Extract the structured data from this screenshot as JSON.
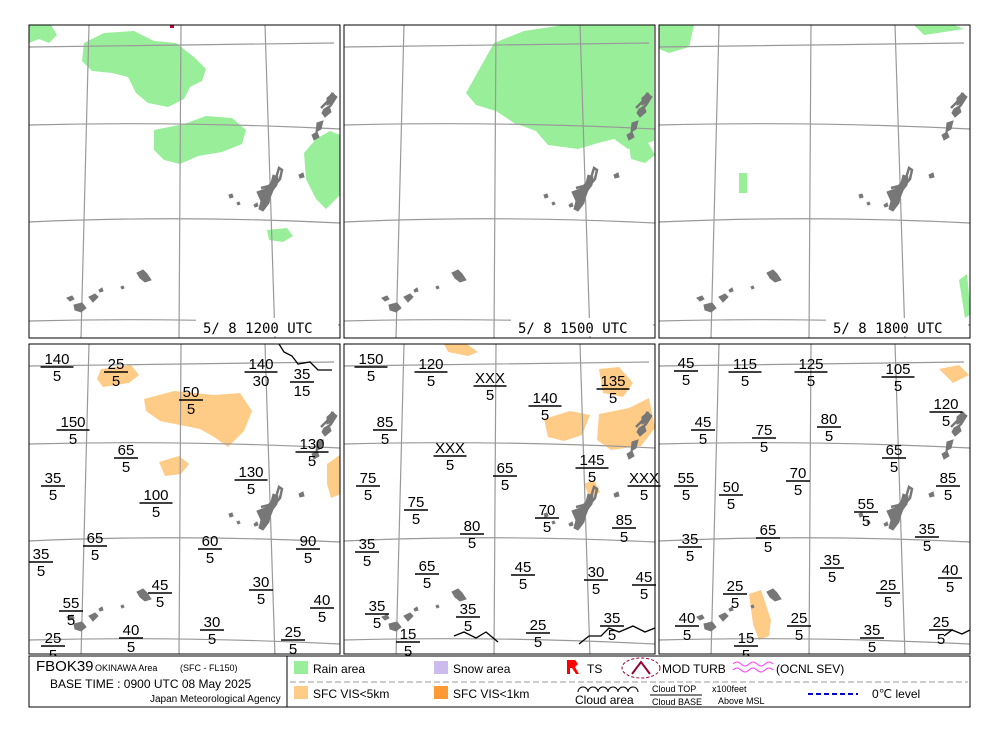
{
  "panels": [
    {
      "time": "5/ 8 1200 UTC"
    },
    {
      "time": "5/ 8 1500 UTC"
    },
    {
      "time": "5/ 8 1800 UTC"
    }
  ],
  "clouds": [
    [
      {
        "top": "140",
        "base": "5"
      },
      {
        "top": "25",
        "base": "5"
      },
      {
        "top": "140",
        "base": "30"
      },
      {
        "top": "35",
        "base": "15"
      },
      {
        "top": "50",
        "base": "5"
      },
      {
        "top": "150",
        "base": "5"
      },
      {
        "top": "65",
        "base": "5"
      },
      {
        "top": "130",
        "base": "5"
      },
      {
        "top": "35",
        "base": "5"
      },
      {
        "top": "100",
        "base": "5"
      },
      {
        "top": "130",
        "base": "5"
      },
      {
        "top": "65",
        "base": "5"
      },
      {
        "top": "60",
        "base": "5"
      },
      {
        "top": "90",
        "base": "5"
      },
      {
        "top": "35",
        "base": "5"
      },
      {
        "top": "45",
        "base": "5"
      },
      {
        "top": "30",
        "base": "5"
      },
      {
        "top": "55",
        "base": "5"
      },
      {
        "top": "40",
        "base": "5"
      },
      {
        "top": "30",
        "base": "5"
      },
      {
        "top": "25",
        "base": "5"
      },
      {
        "top": "25",
        "base": "5"
      },
      {
        "top": "40",
        "base": "5"
      }
    ],
    [
      {
        "top": "150",
        "base": "5"
      },
      {
        "top": "120",
        "base": "5"
      },
      {
        "top": "XXX",
        "base": "5"
      },
      {
        "top": "135",
        "base": "5"
      },
      {
        "top": "140",
        "base": "5"
      },
      {
        "top": "85",
        "base": "5"
      },
      {
        "top": "XXX",
        "base": "5"
      },
      {
        "top": "145",
        "base": "5"
      },
      {
        "top": "65",
        "base": "5"
      },
      {
        "top": "XXX",
        "base": "5"
      },
      {
        "top": "75",
        "base": "5"
      },
      {
        "top": "75",
        "base": "5"
      },
      {
        "top": "70",
        "base": "5"
      },
      {
        "top": "85",
        "base": "5"
      },
      {
        "top": "80",
        "base": "5"
      },
      {
        "top": "35",
        "base": "5"
      },
      {
        "top": "65",
        "base": "5"
      },
      {
        "top": "45",
        "base": "5"
      },
      {
        "top": "30",
        "base": "5"
      },
      {
        "top": "45",
        "base": "5"
      },
      {
        "top": "35",
        "base": "5"
      },
      {
        "top": "35",
        "base": "5"
      },
      {
        "top": "35",
        "base": "5"
      },
      {
        "top": "25",
        "base": "5"
      },
      {
        "top": "15",
        "base": "5"
      }
    ],
    [
      {
        "top": "45",
        "base": "5"
      },
      {
        "top": "115",
        "base": "5"
      },
      {
        "top": "125",
        "base": "5"
      },
      {
        "top": "105",
        "base": "5"
      },
      {
        "top": "120",
        "base": "5"
      },
      {
        "top": "45",
        "base": "5"
      },
      {
        "top": "75",
        "base": "5"
      },
      {
        "top": "80",
        "base": "5"
      },
      {
        "top": "65",
        "base": "5"
      },
      {
        "top": "55",
        "base": "5"
      },
      {
        "top": "50",
        "base": "5"
      },
      {
        "top": "70",
        "base": "5"
      },
      {
        "top": "85",
        "base": "5"
      },
      {
        "top": "55",
        "base": "5"
      },
      {
        "top": "35",
        "base": "5"
      },
      {
        "top": "65",
        "base": "5"
      },
      {
        "top": "35",
        "base": "5"
      },
      {
        "top": "35",
        "base": "5"
      },
      {
        "top": "40",
        "base": "5"
      },
      {
        "top": "25",
        "base": "5"
      },
      {
        "top": "25",
        "base": "5"
      },
      {
        "top": "25",
        "base": "5"
      },
      {
        "top": "40",
        "base": "5"
      },
      {
        "top": "35",
        "base": "5"
      },
      {
        "top": "25",
        "base": "5"
      },
      {
        "top": "15",
        "base": "5"
      }
    ]
  ],
  "footer": {
    "chart_id": "FBOK39",
    "area": "OKINAWA Area",
    "range": "(SFC - FL150)",
    "base_time": "BASE TIME : 0900 UTC 08 May 2025",
    "agency": "Japan Meteorological Agency",
    "rain": "Rain area",
    "snow": "Snow area",
    "ts": "TS",
    "turb": "MOD TURB",
    "sev": "(OCNL SEV)",
    "vis5": "SFC VIS<5km",
    "vis1": "SFC VIS<1km",
    "cloud_area": "Cloud area",
    "cloud_top": "Cloud TOP",
    "cloud_base": "Cloud BASE",
    "units1": "x100feet",
    "units2": "Above MSL",
    "zero": "0℃ level"
  },
  "colors": {
    "rain": "#99ee99",
    "snow": "#ccbbee",
    "vis5": "#ffcc88",
    "vis1": "#ff9933",
    "ts": "#ff0000",
    "turb": "#990033",
    "sev": "#ff44ff",
    "zero": "#0000cc",
    "land": "#777777",
    "grid": "#999999"
  }
}
